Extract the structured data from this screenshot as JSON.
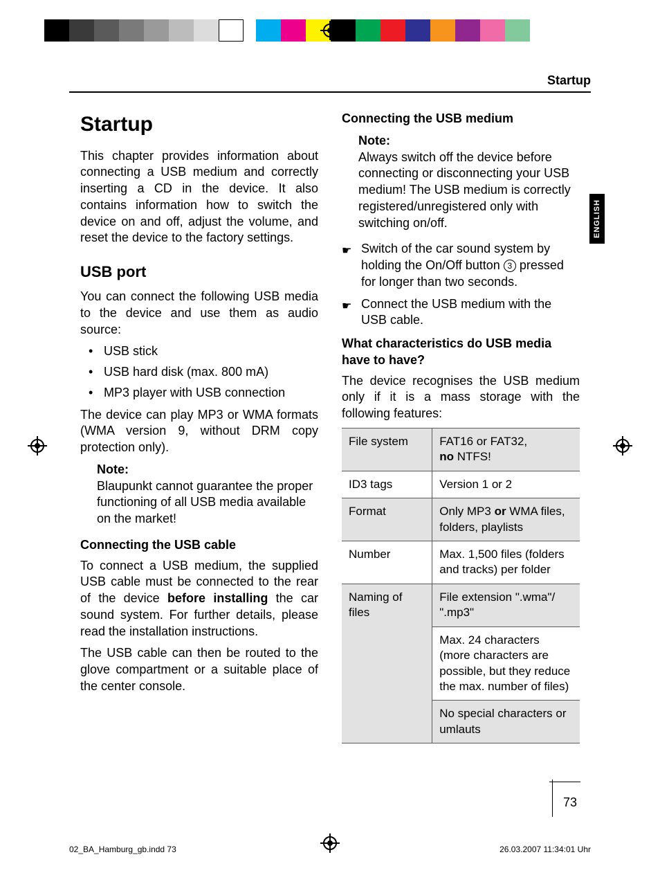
{
  "header": {
    "section": "Startup"
  },
  "sidetab": {
    "label": "ENGLISH"
  },
  "left": {
    "h1": "Startup",
    "intro": "This chapter provides information about connecting a USB medium and correctly inserting a CD in the device. It also contains information how to switch the device on and off, adjust the volume, and reset the device to the factory settings.",
    "h2": "USB port",
    "p1": "You can connect the following USB media to the device and use them as audio source:",
    "bullets": [
      "USB stick",
      "USB hard disk (max. 800 mA)",
      "MP3 player with USB connection"
    ],
    "p2": "The device can play MP3 or WMA formats (WMA version 9, without DRM copy protection only).",
    "note_label": "Note:",
    "note_body": "Blaupunkt cannot guarantee the proper functioning of all USB media available on the market!",
    "h3a": "Connecting the USB cable",
    "p3a": "To connect a USB medium, the supplied USB cable must be connected to the rear of the device ",
    "p3b": "before installing",
    "p3c": " the car sound system. For further details, please read the installation instructions.",
    "p4": "The USB cable can then be routed to the glove compartment or a suitable place of the center console."
  },
  "right": {
    "h3b": "Connecting the USB medium",
    "note_label": "Note:",
    "note_body": "Always switch off the device before connecting or disconnecting your USB medium! The USB medium is correctly registered/unregistered only with switching on/off.",
    "hand1a": "Switch of the car sound system by holding the On/Off button ",
    "hand1_num": "3",
    "hand1b": " pressed for longer than two seconds.",
    "hand2": "Connect the USB medium with the USB cable.",
    "h3c": "What characteristics do USB media have to have?",
    "p5": "The device recognises the USB medium only if it is a mass storage with the following features:",
    "table": {
      "r1k": "File system",
      "r1v1": "FAT16 or FAT32,",
      "r1v2a": "no",
      "r1v2b": " NTFS!",
      "r2k": "ID3 tags",
      "r2v": "Version 1 or 2",
      "r3k": "Format",
      "r3v1": "Only MP3 ",
      "r3v2": "or",
      "r3v3": " WMA files, folders, playlists",
      "r4k": "Number",
      "r4v": "Max. 1,500 files (folders and tracks) per folder",
      "r5k": "Naming of files",
      "r5v": "File extension \".wma\"/ \".mp3\"",
      "r6v": "Max. 24 characters (more characters are possible, but they reduce the max. number of files)",
      "r7v": "No special characters or umlauts"
    }
  },
  "footer": {
    "left": "02_BA_Hamburg_gb.indd   73",
    "right": "26.03.2007   11:34:01 Uhr",
    "pagenum": "73"
  },
  "colorbars": {
    "left": [
      "#000000",
      "#3a3a3a",
      "#5a5a5a",
      "#7a7a7a",
      "#9a9a9a",
      "#bcbcbc",
      "#dcdcdc",
      "#ffffff"
    ],
    "right": [
      "#00adef",
      "#ec008c",
      "#fff200",
      "#000000",
      "#00a551",
      "#ed1c24",
      "#2e3192",
      "#f7941d",
      "#90278e",
      "#f06ba8",
      "#82ca9c",
      "#fff"
    ]
  }
}
